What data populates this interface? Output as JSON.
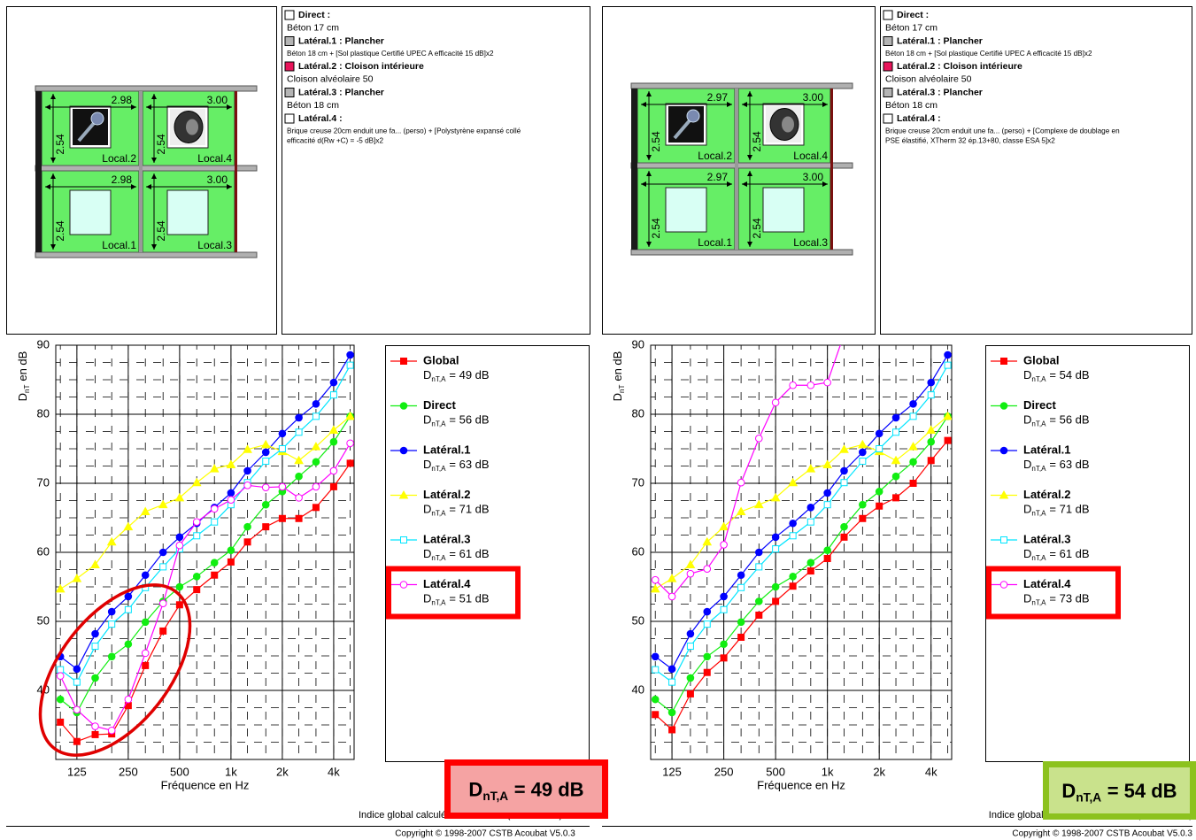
{
  "panels": [
    {
      "plan": {
        "widths": [
          "2.98",
          "3.00"
        ],
        "height": "2.54",
        "rooms": [
          [
            "Local.2",
            "Local.4"
          ],
          [
            "Local.1",
            "Local.3"
          ]
        ]
      },
      "components": [
        {
          "title": "Direct :",
          "color": "#ffffff",
          "small": false,
          "lines": [
            "Béton 17 cm"
          ]
        },
        {
          "title": "Latéral.1 : Plancher",
          "color": "#b4b4b4",
          "small": true,
          "lines": [
            "Béton 18 cm + [Sol plastique Certifié UPEC A efficacité 15 dB]x2"
          ]
        },
        {
          "title": "Latéral.2 : Cloison intérieure",
          "color": "#e8145a",
          "small": false,
          "lines": [
            "Cloison alvéolaire 50"
          ]
        },
        {
          "title": "Latéral.3 : Plancher",
          "color": "#b4b4b4",
          "small": false,
          "lines": [
            "Béton 18 cm"
          ]
        },
        {
          "title": "Latéral.4 :",
          "color": "#ffffff",
          "small": true,
          "lines": [
            "Brique creuse 20cm enduit une fa... (perso) + [Polystyrène expansé collé",
            "efficacité  d(Rw +C) = -5 dB]x2"
          ]
        }
      ],
      "result": {
        "main": "D",
        "sub": "nT,A",
        "rest": "= 49 dB",
        "frame_color": "#ff0000",
        "fill_color": "#f5a3a3"
      },
      "footer": "Indice global calculé selon l'arrêté (30/06/1999)",
      "copyright": "Copyright © 1998-2007 CSTB Acoubat V5.0.3"
    },
    {
      "plan": {
        "widths": [
          "2.97",
          "3.00"
        ],
        "height": "2.54",
        "rooms": [
          [
            "Local.2",
            "Local.4"
          ],
          [
            "Local.1",
            "Local.3"
          ]
        ]
      },
      "components": [
        {
          "title": "Direct :",
          "color": "#ffffff",
          "small": false,
          "lines": [
            "Béton 17 cm"
          ]
        },
        {
          "title": "Latéral.1 : Plancher",
          "color": "#b4b4b4",
          "small": true,
          "lines": [
            "Béton 18 cm + [Sol plastique Certifié UPEC A efficacité 15 dB]x2"
          ]
        },
        {
          "title": "Latéral.2 : Cloison intérieure",
          "color": "#e8145a",
          "small": false,
          "lines": [
            "Cloison alvéolaire 50"
          ]
        },
        {
          "title": "Latéral.3 : Plancher",
          "color": "#b4b4b4",
          "small": false,
          "lines": [
            "Béton 18 cm"
          ]
        },
        {
          "title": "Latéral.4 :",
          "color": "#ffffff",
          "small": true,
          "lines": [
            "Brique creuse 20cm enduit une fa... (perso) + [Complexe de doublage en",
            "PSE élastifié, XTherm 32 ép.13+80, classe ESA 5]x2"
          ]
        }
      ],
      "result": {
        "main": "D",
        "sub": "nT,A",
        "rest": "= 54 dB",
        "frame_color": "#8cc21e",
        "fill_color": "#c9e28c"
      },
      "footer": "Indice global calculé selon l'arrêté (30/06/1999)",
      "copyright": "Copyright © 1998-2007 CSTB Acoubat V5.0.3"
    }
  ],
  "chart_data": [
    {
      "type": "line",
      "log_x": true,
      "grid": true,
      "ylabel": {
        "main": "D",
        "sub": "nT",
        "rest": "en dB"
      },
      "xlabel": "Fréquence en Hz",
      "x": [
        100,
        125,
        160,
        200,
        250,
        315,
        400,
        500,
        630,
        800,
        1000,
        1250,
        1600,
        2000,
        2500,
        3150,
        4000,
        5000
      ],
      "xlim": [
        94,
        5270
      ],
      "xticks": [
        125,
        250,
        500,
        {
          "value": 1000,
          "label": "1k"
        },
        {
          "value": 2000,
          "label": "2k"
        },
        {
          "value": 4000,
          "label": "4k"
        }
      ],
      "ylim": [
        30,
        90
      ],
      "yticks": [
        40,
        50,
        60,
        70,
        80,
        90
      ],
      "minor_yticks": [
        32.5,
        35,
        37.5,
        42.5,
        45,
        47.5,
        52.5,
        55,
        57.5,
        62.5,
        65,
        67.5,
        72.5,
        75,
        77.5,
        82.5,
        85,
        87.5
      ],
      "series": [
        {
          "name": "Global",
          "color": "#ff0000",
          "marker": "square",
          "highlighted": false,
          "rating": {
            "main": "D",
            "sub": "nT,A",
            "rest": "= 49 dB"
          },
          "values": [
            35.4,
            32.6,
            33.6,
            33.7,
            37.8,
            43.6,
            48.6,
            52.4,
            54.6,
            56.7,
            58.6,
            61.5,
            63.7,
            64.9,
            64.9,
            66.5,
            69.5,
            72.9
          ]
        },
        {
          "name": "Direct",
          "color": "#11ee11",
          "marker": "circle",
          "highlighted": false,
          "rating": {
            "main": "D",
            "sub": "nT,A",
            "rest": "= 56 dB"
          },
          "values": [
            38.7,
            36.8,
            41.8,
            44.9,
            46.7,
            49.9,
            52.9,
            55.0,
            56.5,
            58.5,
            60.3,
            63.7,
            66.9,
            68.8,
            71.0,
            73.1,
            76.0,
            79.7
          ]
        },
        {
          "name": "Latéral.1",
          "color": "#0000ff",
          "marker": "circle",
          "highlighted": false,
          "rating": {
            "main": "D",
            "sub": "nT,A",
            "rest": "= 63 dB"
          },
          "values": [
            44.9,
            43.1,
            48.2,
            51.4,
            53.6,
            56.7,
            60.0,
            62.2,
            64.2,
            66.5,
            68.6,
            71.8,
            74.5,
            77.2,
            79.5,
            81.5,
            84.6,
            88.6
          ]
        },
        {
          "name": "Latéral.2",
          "color": "#ffff00",
          "marker": "triangle",
          "highlighted": false,
          "rating": {
            "main": "D",
            "sub": "nT,A",
            "rest": "= 71 dB"
          },
          "values": [
            54.7,
            56.2,
            58.2,
            61.5,
            63.7,
            65.9,
            66.9,
            67.9,
            70.1,
            72.1,
            72.7,
            74.9,
            75.6,
            74.6,
            73.3,
            75.3,
            77.7,
            79.7
          ]
        },
        {
          "name": "Latéral.3",
          "color": "#00e5ff",
          "marker": "open-square",
          "highlighted": false,
          "rating": {
            "main": "D",
            "sub": "nT,A",
            "rest": "= 61 dB"
          },
          "values": [
            43.0,
            41.2,
            46.4,
            49.6,
            51.7,
            54.9,
            57.9,
            60.5,
            62.4,
            64.4,
            66.9,
            70.1,
            73.2,
            75.0,
            77.4,
            79.7,
            82.8,
            87.1
          ]
        },
        {
          "name": "Latéral.4",
          "color": "#ff00ff",
          "marker": "open-circle",
          "highlighted": true,
          "rating": {
            "main": "D",
            "sub": "nT,A",
            "rest": "= 51 dB"
          },
          "values": [
            42.1,
            37.2,
            34.8,
            34.2,
            38.7,
            45.4,
            52.6,
            61.0,
            64.4,
            66.3,
            67.6,
            69.7,
            69.4,
            69.5,
            67.9,
            69.5,
            71.8,
            75.8
          ]
        }
      ]
    },
    {
      "type": "line",
      "log_x": true,
      "grid": true,
      "ylabel": {
        "main": "D",
        "sub": "nT",
        "rest": "en dB"
      },
      "xlabel": "Fréquence en Hz",
      "x": [
        100,
        125,
        160,
        200,
        250,
        315,
        400,
        500,
        630,
        800,
        1000,
        1250,
        1600,
        2000,
        2500,
        3150,
        4000,
        5000
      ],
      "xlim": [
        94,
        5270
      ],
      "xticks": [
        125,
        250,
        500,
        {
          "value": 1000,
          "label": "1k"
        },
        {
          "value": 2000,
          "label": "2k"
        },
        {
          "value": 4000,
          "label": "4k"
        }
      ],
      "ylim": [
        30,
        90
      ],
      "yticks": [
        40,
        50,
        60,
        70,
        80,
        90
      ],
      "minor_yticks": [
        32.5,
        35,
        37.5,
        42.5,
        45,
        47.5,
        52.5,
        55,
        57.5,
        62.5,
        65,
        67.5,
        72.5,
        75,
        77.5,
        82.5,
        85,
        87.5
      ],
      "series": [
        {
          "name": "Global",
          "color": "#ff0000",
          "marker": "square",
          "highlighted": false,
          "rating": {
            "main": "D",
            "sub": "nT,A",
            "rest": "= 54 dB"
          },
          "values": [
            36.5,
            34.3,
            39.5,
            42.6,
            44.7,
            47.7,
            50.9,
            52.9,
            55.1,
            57.3,
            59.1,
            62.2,
            64.9,
            66.7,
            67.9,
            70.0,
            73.3,
            76.2
          ]
        },
        {
          "name": "Direct",
          "color": "#11ee11",
          "marker": "circle",
          "highlighted": false,
          "rating": {
            "main": "D",
            "sub": "nT,A",
            "rest": "= 56 dB"
          },
          "values": [
            38.7,
            36.8,
            41.8,
            44.9,
            46.7,
            49.9,
            52.9,
            55.0,
            56.5,
            58.5,
            60.3,
            63.7,
            66.9,
            68.8,
            71.0,
            73.1,
            76.0,
            79.7
          ]
        },
        {
          "name": "Latéral.1",
          "color": "#0000ff",
          "marker": "circle",
          "highlighted": false,
          "rating": {
            "main": "D",
            "sub": "nT,A",
            "rest": "= 63 dB"
          },
          "values": [
            44.9,
            43.1,
            48.2,
            51.4,
            53.6,
            56.7,
            60.0,
            62.2,
            64.2,
            66.5,
            68.6,
            71.8,
            74.5,
            77.2,
            79.5,
            81.5,
            84.6,
            88.6
          ]
        },
        {
          "name": "Latéral.2",
          "color": "#ffff00",
          "marker": "triangle",
          "highlighted": false,
          "rating": {
            "main": "D",
            "sub": "nT,A",
            "rest": "= 71 dB"
          },
          "values": [
            54.7,
            56.2,
            58.2,
            61.5,
            63.7,
            65.9,
            66.9,
            67.9,
            70.1,
            72.1,
            72.7,
            74.9,
            75.6,
            74.6,
            73.3,
            75.3,
            77.7,
            79.7
          ]
        },
        {
          "name": "Latéral.3",
          "color": "#00e5ff",
          "marker": "open-square",
          "highlighted": false,
          "rating": {
            "main": "D",
            "sub": "nT,A",
            "rest": "= 61 dB"
          },
          "values": [
            43.0,
            41.2,
            46.4,
            49.6,
            51.7,
            54.9,
            57.9,
            60.5,
            62.4,
            64.4,
            66.9,
            70.1,
            73.2,
            75.0,
            77.4,
            79.7,
            82.8,
            87.1
          ]
        },
        {
          "name": "Latéral.4",
          "color": "#ff00ff",
          "marker": "open-circle",
          "highlighted": true,
          "rating": {
            "main": "D",
            "sub": "nT,A",
            "rest": "= 73 dB"
          },
          "values": [
            56.0,
            53.6,
            56.9,
            57.6,
            61.1,
            70.1,
            76.5,
            81.7,
            84.2,
            84.2,
            84.6,
            91.6,
            null,
            null,
            null,
            null,
            null,
            null
          ]
        }
      ]
    }
  ]
}
